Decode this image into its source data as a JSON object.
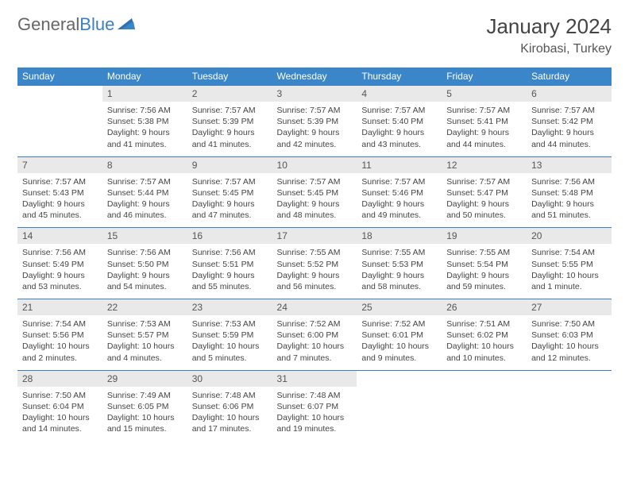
{
  "brand": {
    "word1": "General",
    "word2": "Blue"
  },
  "title": "January 2024",
  "location": "Kirobasi, Turkey",
  "colors": {
    "header_bg": "#3a86c8",
    "rule": "#3a7fc4",
    "daynum_bg": "#e9e9e9",
    "text": "#444444"
  },
  "day_labels": [
    "Sunday",
    "Monday",
    "Tuesday",
    "Wednesday",
    "Thursday",
    "Friday",
    "Saturday"
  ],
  "weeks": [
    [
      {
        "n": "",
        "sr": "",
        "ss": "",
        "dl": ""
      },
      {
        "n": "1",
        "sr": "Sunrise: 7:56 AM",
        "ss": "Sunset: 5:38 PM",
        "dl": "Daylight: 9 hours and 41 minutes."
      },
      {
        "n": "2",
        "sr": "Sunrise: 7:57 AM",
        "ss": "Sunset: 5:39 PM",
        "dl": "Daylight: 9 hours and 41 minutes."
      },
      {
        "n": "3",
        "sr": "Sunrise: 7:57 AM",
        "ss": "Sunset: 5:39 PM",
        "dl": "Daylight: 9 hours and 42 minutes."
      },
      {
        "n": "4",
        "sr": "Sunrise: 7:57 AM",
        "ss": "Sunset: 5:40 PM",
        "dl": "Daylight: 9 hours and 43 minutes."
      },
      {
        "n": "5",
        "sr": "Sunrise: 7:57 AM",
        "ss": "Sunset: 5:41 PM",
        "dl": "Daylight: 9 hours and 44 minutes."
      },
      {
        "n": "6",
        "sr": "Sunrise: 7:57 AM",
        "ss": "Sunset: 5:42 PM",
        "dl": "Daylight: 9 hours and 44 minutes."
      }
    ],
    [
      {
        "n": "7",
        "sr": "Sunrise: 7:57 AM",
        "ss": "Sunset: 5:43 PM",
        "dl": "Daylight: 9 hours and 45 minutes."
      },
      {
        "n": "8",
        "sr": "Sunrise: 7:57 AM",
        "ss": "Sunset: 5:44 PM",
        "dl": "Daylight: 9 hours and 46 minutes."
      },
      {
        "n": "9",
        "sr": "Sunrise: 7:57 AM",
        "ss": "Sunset: 5:45 PM",
        "dl": "Daylight: 9 hours and 47 minutes."
      },
      {
        "n": "10",
        "sr": "Sunrise: 7:57 AM",
        "ss": "Sunset: 5:45 PM",
        "dl": "Daylight: 9 hours and 48 minutes."
      },
      {
        "n": "11",
        "sr": "Sunrise: 7:57 AM",
        "ss": "Sunset: 5:46 PM",
        "dl": "Daylight: 9 hours and 49 minutes."
      },
      {
        "n": "12",
        "sr": "Sunrise: 7:57 AM",
        "ss": "Sunset: 5:47 PM",
        "dl": "Daylight: 9 hours and 50 minutes."
      },
      {
        "n": "13",
        "sr": "Sunrise: 7:56 AM",
        "ss": "Sunset: 5:48 PM",
        "dl": "Daylight: 9 hours and 51 minutes."
      }
    ],
    [
      {
        "n": "14",
        "sr": "Sunrise: 7:56 AM",
        "ss": "Sunset: 5:49 PM",
        "dl": "Daylight: 9 hours and 53 minutes."
      },
      {
        "n": "15",
        "sr": "Sunrise: 7:56 AM",
        "ss": "Sunset: 5:50 PM",
        "dl": "Daylight: 9 hours and 54 minutes."
      },
      {
        "n": "16",
        "sr": "Sunrise: 7:56 AM",
        "ss": "Sunset: 5:51 PM",
        "dl": "Daylight: 9 hours and 55 minutes."
      },
      {
        "n": "17",
        "sr": "Sunrise: 7:55 AM",
        "ss": "Sunset: 5:52 PM",
        "dl": "Daylight: 9 hours and 56 minutes."
      },
      {
        "n": "18",
        "sr": "Sunrise: 7:55 AM",
        "ss": "Sunset: 5:53 PM",
        "dl": "Daylight: 9 hours and 58 minutes."
      },
      {
        "n": "19",
        "sr": "Sunrise: 7:55 AM",
        "ss": "Sunset: 5:54 PM",
        "dl": "Daylight: 9 hours and 59 minutes."
      },
      {
        "n": "20",
        "sr": "Sunrise: 7:54 AM",
        "ss": "Sunset: 5:55 PM",
        "dl": "Daylight: 10 hours and 1 minute."
      }
    ],
    [
      {
        "n": "21",
        "sr": "Sunrise: 7:54 AM",
        "ss": "Sunset: 5:56 PM",
        "dl": "Daylight: 10 hours and 2 minutes."
      },
      {
        "n": "22",
        "sr": "Sunrise: 7:53 AM",
        "ss": "Sunset: 5:57 PM",
        "dl": "Daylight: 10 hours and 4 minutes."
      },
      {
        "n": "23",
        "sr": "Sunrise: 7:53 AM",
        "ss": "Sunset: 5:59 PM",
        "dl": "Daylight: 10 hours and 5 minutes."
      },
      {
        "n": "24",
        "sr": "Sunrise: 7:52 AM",
        "ss": "Sunset: 6:00 PM",
        "dl": "Daylight: 10 hours and 7 minutes."
      },
      {
        "n": "25",
        "sr": "Sunrise: 7:52 AM",
        "ss": "Sunset: 6:01 PM",
        "dl": "Daylight: 10 hours and 9 minutes."
      },
      {
        "n": "26",
        "sr": "Sunrise: 7:51 AM",
        "ss": "Sunset: 6:02 PM",
        "dl": "Daylight: 10 hours and 10 minutes."
      },
      {
        "n": "27",
        "sr": "Sunrise: 7:50 AM",
        "ss": "Sunset: 6:03 PM",
        "dl": "Daylight: 10 hours and 12 minutes."
      }
    ],
    [
      {
        "n": "28",
        "sr": "Sunrise: 7:50 AM",
        "ss": "Sunset: 6:04 PM",
        "dl": "Daylight: 10 hours and 14 minutes."
      },
      {
        "n": "29",
        "sr": "Sunrise: 7:49 AM",
        "ss": "Sunset: 6:05 PM",
        "dl": "Daylight: 10 hours and 15 minutes."
      },
      {
        "n": "30",
        "sr": "Sunrise: 7:48 AM",
        "ss": "Sunset: 6:06 PM",
        "dl": "Daylight: 10 hours and 17 minutes."
      },
      {
        "n": "31",
        "sr": "Sunrise: 7:48 AM",
        "ss": "Sunset: 6:07 PM",
        "dl": "Daylight: 10 hours and 19 minutes."
      },
      {
        "n": "",
        "sr": "",
        "ss": "",
        "dl": ""
      },
      {
        "n": "",
        "sr": "",
        "ss": "",
        "dl": ""
      },
      {
        "n": "",
        "sr": "",
        "ss": "",
        "dl": ""
      }
    ]
  ]
}
